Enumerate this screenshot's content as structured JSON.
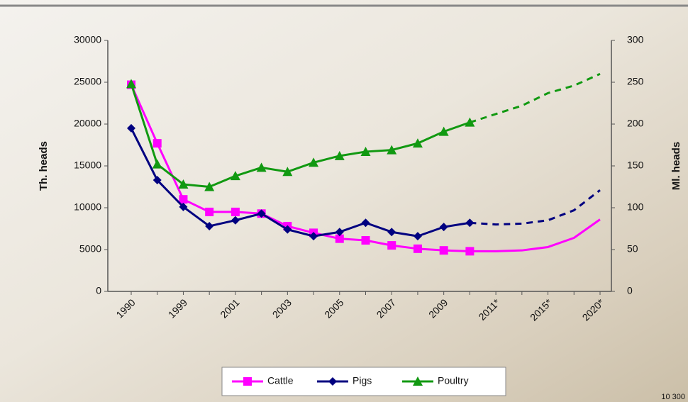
{
  "chart_data": {
    "type": "line",
    "categories": [
      "1990",
      null,
      "1999",
      null,
      "2001",
      null,
      "2003",
      null,
      "2005",
      null,
      "2007",
      null,
      "2009",
      null,
      "2011*",
      null,
      "2015*",
      null,
      "2020*"
    ],
    "y_label": "Th. heads",
    "y2_label": "Ml. heads",
    "ylim": [
      0,
      30000
    ],
    "yticks": [
      0,
      5000,
      10000,
      15000,
      20000,
      25000,
      30000
    ],
    "y2lim": [
      0,
      300
    ],
    "y2ticks": [
      0,
      50,
      100,
      150,
      200,
      250,
      300
    ],
    "marker_until": 13,
    "series": [
      {
        "name": "Cattle",
        "color": "#ff00ff",
        "marker": "square",
        "dash_from": null,
        "values": [
          24700,
          17700,
          11000,
          9500,
          9500,
          9300,
          7800,
          7000,
          6300,
          6100,
          5500,
          5100,
          4900,
          4800,
          4800,
          4900,
          5300,
          6400,
          8600
        ]
      },
      {
        "name": "Pigs",
        "color": "#000080",
        "marker": "diamond",
        "dash_from": 13,
        "values": [
          19500,
          13300,
          10100,
          7800,
          8500,
          9300,
          7400,
          6600,
          7100,
          8200,
          7100,
          6600,
          7700,
          8200,
          8000,
          8100,
          8500,
          9700,
          12100
        ]
      },
      {
        "name": "Poultry",
        "color": "#119911",
        "marker": "triangle",
        "dash_from": 13,
        "axis": "y2",
        "values": [
          248,
          152,
          128,
          125,
          138,
          148,
          143,
          154,
          162,
          167,
          169,
          177,
          191,
          202,
          212,
          222,
          237,
          246,
          260
        ]
      }
    ],
    "legend": "bottom",
    "footnote": "10 300"
  }
}
